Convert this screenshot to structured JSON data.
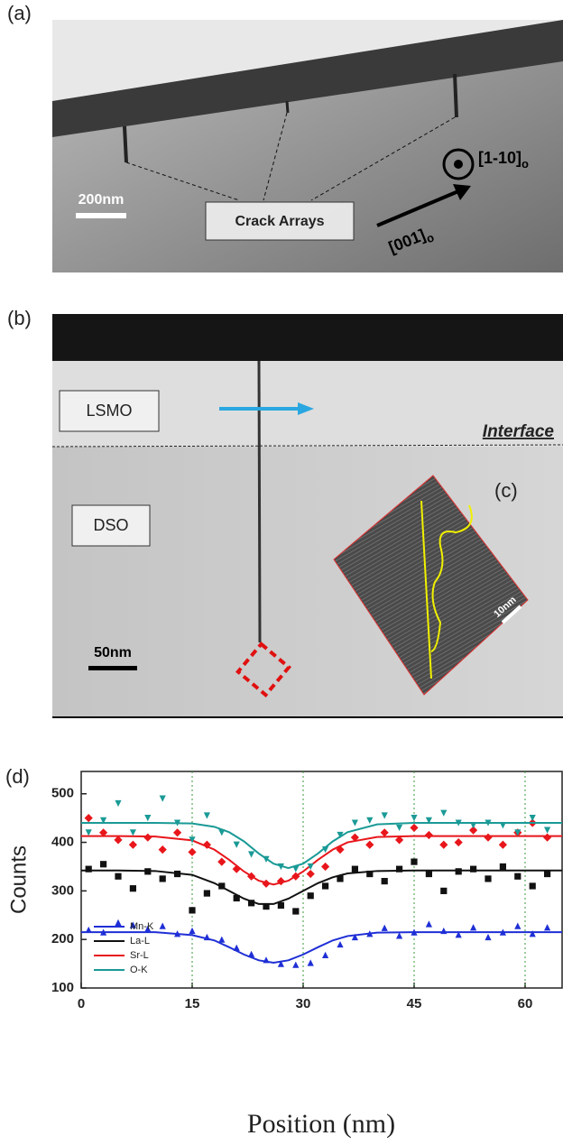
{
  "panel_a": {
    "label": "(a)",
    "scale_bar": "200nm",
    "annotation": "Crack Arrays",
    "direction_out": {
      "text": "[1-10]",
      "sub": "o"
    },
    "direction_in": {
      "text": "[001]",
      "sub": "o"
    }
  },
  "panel_b": {
    "label": "(b)",
    "layer_top": "LSMO",
    "layer_bottom": "DSO",
    "interface": "Interface",
    "scale_bar": "50nm"
  },
  "panel_c": {
    "label": "(c)",
    "scale_bar": "10nm"
  },
  "panel_d": {
    "label": "(d)"
  },
  "chart_data": {
    "type": "scatter",
    "xlabel": "Position (nm)",
    "ylabel": "Counts",
    "xlim": [
      0,
      65
    ],
    "ylim": [
      100,
      546
    ],
    "xticks": [
      0,
      15,
      30,
      45,
      60
    ],
    "yticks": [
      100,
      200,
      300,
      400,
      500
    ],
    "grid": "x",
    "grid_color": "#3a9a3a",
    "legend": "lower left",
    "x": [
      1,
      3,
      5,
      7,
      9,
      11,
      13,
      15,
      17,
      19,
      21,
      23,
      25,
      27,
      29,
      31,
      33,
      35,
      37,
      39,
      41,
      43,
      45,
      47,
      49,
      51,
      53,
      55,
      57,
      59,
      61,
      63
    ],
    "fit_x": [
      0,
      5,
      10,
      15,
      18,
      20,
      22,
      24,
      26,
      28,
      30,
      32,
      34,
      36,
      40,
      45,
      50,
      55,
      60,
      65
    ],
    "series": [
      {
        "name": "Mn-K",
        "color": "#1f2fd6",
        "marker": "triangle-up",
        "values": [
          220,
          215,
          235,
          230,
          222,
          228,
          212,
          218,
          205,
          200,
          183,
          170,
          158,
          150,
          148,
          152,
          168,
          190,
          205,
          212,
          224,
          208,
          215,
          232,
          218,
          210,
          225,
          205,
          215,
          228,
          212,
          225
        ],
        "fit": [
          215,
          215,
          215,
          209,
          198,
          184,
          169,
          157,
          152,
          157,
          169,
          184,
          198,
          207,
          214,
          215,
          215,
          215,
          215,
          215
        ]
      },
      {
        "name": "La-L",
        "color": "#111111",
        "marker": "square",
        "values": [
          345,
          355,
          330,
          305,
          340,
          325,
          335,
          260,
          295,
          310,
          285,
          275,
          268,
          270,
          258,
          290,
          310,
          325,
          345,
          335,
          320,
          345,
          360,
          335,
          300,
          340,
          345,
          325,
          350,
          330,
          310,
          335
        ],
        "fit": [
          342,
          342,
          341,
          333,
          316,
          300,
          284,
          273,
          273,
          284,
          300,
          316,
          328,
          336,
          341,
          342,
          342,
          342,
          342,
          342
        ]
      },
      {
        "name": "Sr-L",
        "color": "#e8161b",
        "marker": "diamond",
        "values": [
          450,
          420,
          405,
          395,
          410,
          385,
          420,
          380,
          395,
          360,
          345,
          330,
          315,
          320,
          330,
          335,
          350,
          385,
          410,
          395,
          420,
          405,
          430,
          415,
          395,
          400,
          425,
          410,
          395,
          420,
          440,
          410
        ],
        "fit": [
          413,
          413,
          412,
          404,
          385,
          364,
          340,
          321,
          313,
          321,
          340,
          364,
          385,
          400,
          411,
          413,
          413,
          413,
          413,
          413
        ]
      },
      {
        "name": "O-K",
        "color": "#1a9a96",
        "marker": "triangle-down",
        "values": [
          420,
          445,
          480,
          420,
          450,
          490,
          440,
          405,
          455,
          420,
          395,
          375,
          365,
          350,
          345,
          350,
          385,
          415,
          440,
          445,
          455,
          430,
          450,
          445,
          460,
          440,
          435,
          440,
          435,
          420,
          450,
          425
        ],
        "fit": [
          440,
          440,
          440,
          439,
          432,
          421,
          402,
          377,
          356,
          347,
          356,
          377,
          402,
          421,
          437,
          440,
          440,
          440,
          440,
          440
        ]
      }
    ]
  }
}
